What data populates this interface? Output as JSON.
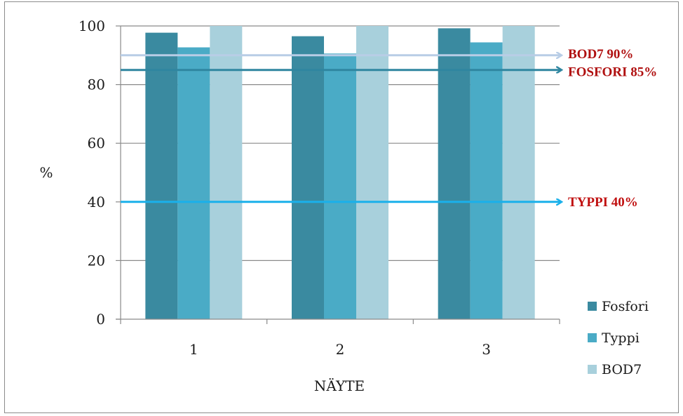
{
  "chart_data": {
    "type": "bar",
    "title": "",
    "xlabel": "NÄYTE",
    "ylabel": "%",
    "ylim": [
      0,
      100
    ],
    "yticks": [
      0,
      20,
      40,
      60,
      80,
      100
    ],
    "grid": true,
    "legend_position": "bottom-right",
    "categories": [
      "1",
      "2",
      "3"
    ],
    "series": [
      {
        "name": "Fosfori",
        "color": "#3a8aa0",
        "values": [
          97.7,
          96.5,
          99.2
        ]
      },
      {
        "name": "Typpi",
        "color": "#4aabc6",
        "values": [
          92.7,
          90.6,
          94.4
        ]
      },
      {
        "name": "BOD7",
        "color": "#a8d0dc",
        "values": [
          100,
          100,
          100
        ]
      }
    ],
    "thresholds": [
      {
        "label": "BOD7 90%",
        "value": 90,
        "line_color": "#b8cde6",
        "text_color": "#b01010"
      },
      {
        "label": "FOSFORI 85%",
        "value": 85,
        "line_color": "#2f86a0",
        "text_color": "#b01010"
      },
      {
        "label": "TYPPI 40%",
        "value": 40,
        "line_color": "#1ab0ea",
        "text_color": "#c01010"
      }
    ]
  }
}
